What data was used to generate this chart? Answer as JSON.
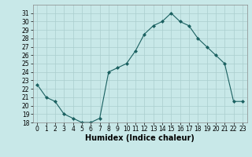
{
  "xlabel": "Humidex (Indice chaleur)",
  "x": [
    0,
    1,
    2,
    3,
    4,
    5,
    6,
    7,
    8,
    9,
    10,
    11,
    12,
    13,
    14,
    15,
    16,
    17,
    18,
    19,
    20,
    21,
    22,
    23
  ],
  "y": [
    22.5,
    21.0,
    20.5,
    19.0,
    18.5,
    18.0,
    18.0,
    18.5,
    24.0,
    24.5,
    25.0,
    26.5,
    28.5,
    29.5,
    30.0,
    31.0,
    30.0,
    29.5,
    28.0,
    27.0,
    26.0,
    25.0,
    20.5,
    20.5
  ],
  "line_color": "#1a6060",
  "marker": "D",
  "marker_size": 2,
  "bg_color": "#c8e8e8",
  "grid_color": "#aacece",
  "ylim": [
    18,
    32
  ],
  "xlim": [
    -0.5,
    23.5
  ],
  "yticks": [
    18,
    19,
    20,
    21,
    22,
    23,
    24,
    25,
    26,
    27,
    28,
    29,
    30,
    31
  ],
  "xticks": [
    0,
    1,
    2,
    3,
    4,
    5,
    6,
    7,
    8,
    9,
    10,
    11,
    12,
    13,
    14,
    15,
    16,
    17,
    18,
    19,
    20,
    21,
    22,
    23
  ],
  "tick_fontsize": 5.5,
  "xlabel_fontsize": 7
}
